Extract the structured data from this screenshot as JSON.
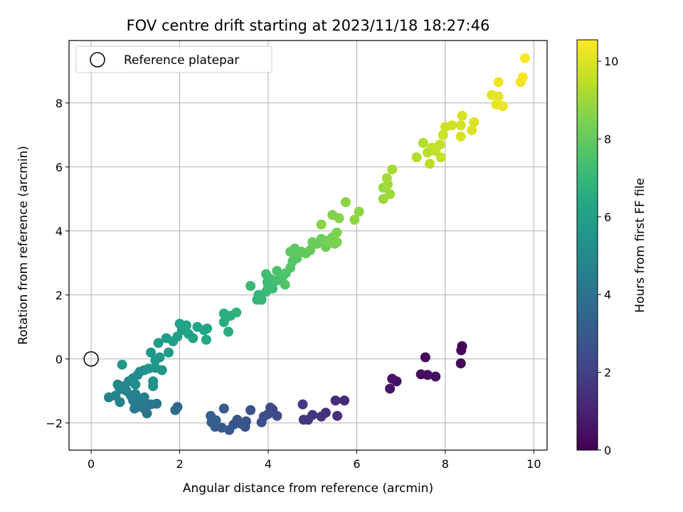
{
  "chart_data": {
    "type": "scatter",
    "title": "FOV centre drift starting at 2023/11/18 18:27:46",
    "xlabel": "Angular distance from reference (arcmin)",
    "ylabel": "Rotation from reference (arcmin)",
    "xlim": [
      -0.5,
      10.3
    ],
    "ylim": [
      -2.85,
      9.95
    ],
    "x_ticks": [
      0,
      2,
      4,
      6,
      8,
      10
    ],
    "y_ticks": [
      -2,
      0,
      2,
      4,
      6,
      8
    ],
    "grid": true,
    "legend": {
      "placement": "top-left",
      "entries": [
        "Reference platepar"
      ]
    },
    "reference_point": {
      "x": 0,
      "y": 0
    },
    "colorbar": {
      "label": "Hours from first FF file",
      "colormap": "viridis",
      "range": [
        0,
        10.55
      ],
      "ticks": [
        0,
        2,
        4,
        6,
        8,
        10
      ]
    },
    "points": [
      {
        "x": 8.38,
        "y": 0.4,
        "c": 0.1
      },
      {
        "x": 8.36,
        "y": 0.27,
        "c": 0.15
      },
      {
        "x": 8.35,
        "y": -0.14,
        "c": 0.2
      },
      {
        "x": 7.55,
        "y": 0.05,
        "c": 0.3
      },
      {
        "x": 7.45,
        "y": -0.48,
        "c": 0.35
      },
      {
        "x": 7.6,
        "y": -0.5,
        "c": 0.4
      },
      {
        "x": 7.78,
        "y": -0.55,
        "c": 0.45
      },
      {
        "x": 6.9,
        "y": -0.7,
        "c": 0.55
      },
      {
        "x": 6.8,
        "y": -0.62,
        "c": 0.6
      },
      {
        "x": 6.75,
        "y": -0.93,
        "c": 0.65
      },
      {
        "x": 5.72,
        "y": -1.3,
        "c": 1.3
      },
      {
        "x": 5.52,
        "y": -1.3,
        "c": 1.35
      },
      {
        "x": 5.56,
        "y": -1.78,
        "c": 1.45
      },
      {
        "x": 5.3,
        "y": -1.68,
        "c": 1.5
      },
      {
        "x": 5.2,
        "y": -1.8,
        "c": 1.55
      },
      {
        "x": 5.0,
        "y": -1.75,
        "c": 1.6
      },
      {
        "x": 4.9,
        "y": -1.9,
        "c": 1.65
      },
      {
        "x": 4.8,
        "y": -1.9,
        "c": 1.7
      },
      {
        "x": 4.78,
        "y": -1.42,
        "c": 1.75
      },
      {
        "x": 4.1,
        "y": -1.58,
        "c": 2.3
      },
      {
        "x": 4.05,
        "y": -1.52,
        "c": 2.35
      },
      {
        "x": 4.2,
        "y": -1.78,
        "c": 2.4
      },
      {
        "x": 4.0,
        "y": -1.72,
        "c": 2.45
      },
      {
        "x": 3.9,
        "y": -1.8,
        "c": 2.5
      },
      {
        "x": 3.85,
        "y": -1.98,
        "c": 2.55
      },
      {
        "x": 3.6,
        "y": -1.6,
        "c": 2.6
      },
      {
        "x": 3.5,
        "y": -1.95,
        "c": 2.7
      },
      {
        "x": 3.48,
        "y": -2.12,
        "c": 2.75
      },
      {
        "x": 3.38,
        "y": -2.02,
        "c": 2.8
      },
      {
        "x": 3.3,
        "y": -1.9,
        "c": 2.85
      },
      {
        "x": 3.22,
        "y": -2.05,
        "c": 2.9
      },
      {
        "x": 3.12,
        "y": -2.22,
        "c": 2.95
      },
      {
        "x": 3.0,
        "y": -1.55,
        "c": 3.0
      },
      {
        "x": 2.95,
        "y": -2.15,
        "c": 3.05
      },
      {
        "x": 2.8,
        "y": -2.12,
        "c": 3.1
      },
      {
        "x": 2.82,
        "y": -1.92,
        "c": 3.15
      },
      {
        "x": 2.72,
        "y": -1.98,
        "c": 3.2
      },
      {
        "x": 2.7,
        "y": -1.78,
        "c": 3.25
      },
      {
        "x": 1.95,
        "y": -1.5,
        "c": 3.6
      },
      {
        "x": 1.9,
        "y": -1.6,
        "c": 3.65
      },
      {
        "x": 1.26,
        "y": -1.7,
        "c": 4.0
      },
      {
        "x": 1.2,
        "y": -1.55,
        "c": 4.05
      },
      {
        "x": 1.48,
        "y": -1.4,
        "c": 4.1
      },
      {
        "x": 1.35,
        "y": -1.42,
        "c": 4.15
      },
      {
        "x": 0.98,
        "y": -1.55,
        "c": 4.2
      },
      {
        "x": 1.05,
        "y": -1.5,
        "c": 4.25
      },
      {
        "x": 1.15,
        "y": -1.4,
        "c": 4.3
      },
      {
        "x": 0.95,
        "y": -1.3,
        "c": 4.35
      },
      {
        "x": 1.1,
        "y": -1.25,
        "c": 4.4
      },
      {
        "x": 1.2,
        "y": -1.2,
        "c": 4.45
      },
      {
        "x": 0.9,
        "y": -1.15,
        "c": 4.5
      },
      {
        "x": 1.0,
        "y": -1.1,
        "c": 4.55
      },
      {
        "x": 0.4,
        "y": -1.2,
        "c": 4.6
      },
      {
        "x": 0.65,
        "y": -1.35,
        "c": 4.65
      },
      {
        "x": 0.55,
        "y": -1.15,
        "c": 4.7
      },
      {
        "x": 0.8,
        "y": -1.0,
        "c": 4.75
      },
      {
        "x": 0.65,
        "y": -0.95,
        "c": 4.8
      },
      {
        "x": 0.75,
        "y": -0.85,
        "c": 4.85
      },
      {
        "x": 0.6,
        "y": -0.8,
        "c": 4.9
      },
      {
        "x": 0.85,
        "y": -0.7,
        "c": 4.95
      },
      {
        "x": 0.95,
        "y": -0.6,
        "c": 5.0
      },
      {
        "x": 1.05,
        "y": -0.5,
        "c": 5.05
      },
      {
        "x": 1.0,
        "y": -0.8,
        "c": 5.1
      },
      {
        "x": 1.1,
        "y": -0.4,
        "c": 5.15
      },
      {
        "x": 1.2,
        "y": -0.35,
        "c": 5.2
      },
      {
        "x": 1.4,
        "y": -0.7,
        "c": 5.25
      },
      {
        "x": 1.4,
        "y": -0.85,
        "c": 5.3
      },
      {
        "x": 1.3,
        "y": -0.3,
        "c": 5.35
      },
      {
        "x": 1.45,
        "y": -0.28,
        "c": 5.4
      },
      {
        "x": 1.6,
        "y": -0.35,
        "c": 5.45
      },
      {
        "x": 0.7,
        "y": -0.18,
        "c": 5.5
      },
      {
        "x": 1.35,
        "y": 0.2,
        "c": 5.55
      },
      {
        "x": 1.55,
        "y": 0.05,
        "c": 5.6
      },
      {
        "x": 1.45,
        "y": -0.05,
        "c": 5.65
      },
      {
        "x": 1.75,
        "y": 0.2,
        "c": 5.7
      },
      {
        "x": 1.52,
        "y": 0.5,
        "c": 5.75
      },
      {
        "x": 1.7,
        "y": 0.65,
        "c": 5.8
      },
      {
        "x": 1.85,
        "y": 0.55,
        "c": 5.85
      },
      {
        "x": 1.95,
        "y": 0.7,
        "c": 5.9
      },
      {
        "x": 2.05,
        "y": 0.9,
        "c": 5.95
      },
      {
        "x": 2.0,
        "y": 1.1,
        "c": 6.0
      },
      {
        "x": 2.15,
        "y": 1.05,
        "c": 6.05
      },
      {
        "x": 2.2,
        "y": 0.78,
        "c": 6.1
      },
      {
        "x": 2.3,
        "y": 0.65,
        "c": 6.15
      },
      {
        "x": 2.4,
        "y": 1.0,
        "c": 6.2
      },
      {
        "x": 2.55,
        "y": 0.9,
        "c": 6.25
      },
      {
        "x": 2.62,
        "y": 0.95,
        "c": 6.3
      },
      {
        "x": 2.6,
        "y": 0.6,
        "c": 6.35
      },
      {
        "x": 3.1,
        "y": 0.85,
        "c": 6.5
      },
      {
        "x": 3.0,
        "y": 1.15,
        "c": 6.55
      },
      {
        "x": 3.05,
        "y": 1.3,
        "c": 6.6
      },
      {
        "x": 3.0,
        "y": 1.42,
        "c": 6.65
      },
      {
        "x": 3.15,
        "y": 1.35,
        "c": 6.7
      },
      {
        "x": 3.28,
        "y": 1.45,
        "c": 6.75
      },
      {
        "x": 3.75,
        "y": 1.85,
        "c": 6.9
      },
      {
        "x": 3.78,
        "y": 2.0,
        "c": 6.95
      },
      {
        "x": 3.85,
        "y": 1.85,
        "c": 7.0
      },
      {
        "x": 3.6,
        "y": 2.28,
        "c": 7.05
      },
      {
        "x": 3.95,
        "y": 2.1,
        "c": 7.1
      },
      {
        "x": 4.0,
        "y": 2.25,
        "c": 7.15
      },
      {
        "x": 4.1,
        "y": 2.2,
        "c": 7.2
      },
      {
        "x": 3.98,
        "y": 2.4,
        "c": 7.25
      },
      {
        "x": 4.05,
        "y": 2.5,
        "c": 7.3
      },
      {
        "x": 3.95,
        "y": 2.65,
        "c": 7.35
      },
      {
        "x": 4.2,
        "y": 2.45,
        "c": 7.4
      },
      {
        "x": 4.3,
        "y": 2.5,
        "c": 7.45
      },
      {
        "x": 4.2,
        "y": 2.75,
        "c": 7.5
      },
      {
        "x": 4.35,
        "y": 2.62,
        "c": 7.55
      },
      {
        "x": 4.4,
        "y": 2.68,
        "c": 7.6
      },
      {
        "x": 4.38,
        "y": 2.32,
        "c": 7.65
      },
      {
        "x": 4.5,
        "y": 2.85,
        "c": 7.7
      },
      {
        "x": 4.55,
        "y": 3.05,
        "c": 7.75
      },
      {
        "x": 4.65,
        "y": 3.15,
        "c": 7.8
      },
      {
        "x": 4.5,
        "y": 3.35,
        "c": 7.85
      },
      {
        "x": 4.6,
        "y": 3.45,
        "c": 7.9
      },
      {
        "x": 4.75,
        "y": 3.35,
        "c": 7.95
      },
      {
        "x": 4.85,
        "y": 3.3,
        "c": 8.0
      },
      {
        "x": 4.95,
        "y": 3.4,
        "c": 8.05
      },
      {
        "x": 5.0,
        "y": 3.65,
        "c": 8.1
      },
      {
        "x": 5.1,
        "y": 3.6,
        "c": 8.15
      },
      {
        "x": 5.2,
        "y": 3.75,
        "c": 8.2
      },
      {
        "x": 5.3,
        "y": 3.5,
        "c": 8.25
      },
      {
        "x": 5.35,
        "y": 3.7,
        "c": 8.3
      },
      {
        "x": 5.45,
        "y": 3.8,
        "c": 8.35
      },
      {
        "x": 5.5,
        "y": 3.6,
        "c": 8.4
      },
      {
        "x": 5.55,
        "y": 3.65,
        "c": 8.45
      },
      {
        "x": 5.55,
        "y": 3.95,
        "c": 8.5
      },
      {
        "x": 5.45,
        "y": 4.5,
        "c": 8.55
      },
      {
        "x": 5.6,
        "y": 4.4,
        "c": 8.6
      },
      {
        "x": 5.2,
        "y": 4.2,
        "c": 8.65
      },
      {
        "x": 5.75,
        "y": 4.9,
        "c": 8.7
      },
      {
        "x": 6.05,
        "y": 4.6,
        "c": 8.75
      },
      {
        "x": 5.95,
        "y": 4.35,
        "c": 8.8
      },
      {
        "x": 6.6,
        "y": 5.0,
        "c": 8.9
      },
      {
        "x": 6.6,
        "y": 5.35,
        "c": 8.95
      },
      {
        "x": 6.75,
        "y": 5.15,
        "c": 9.0
      },
      {
        "x": 6.7,
        "y": 5.45,
        "c": 9.05
      },
      {
        "x": 6.68,
        "y": 5.65,
        "c": 9.1
      },
      {
        "x": 6.8,
        "y": 5.92,
        "c": 9.15
      },
      {
        "x": 7.35,
        "y": 6.3,
        "c": 9.3
      },
      {
        "x": 7.5,
        "y": 6.75,
        "c": 9.35
      },
      {
        "x": 7.6,
        "y": 6.45,
        "c": 9.4
      },
      {
        "x": 7.65,
        "y": 6.1,
        "c": 9.45
      },
      {
        "x": 7.7,
        "y": 6.6,
        "c": 9.5
      },
      {
        "x": 7.78,
        "y": 6.5,
        "c": 9.55
      },
      {
        "x": 7.9,
        "y": 6.3,
        "c": 9.6
      },
      {
        "x": 7.88,
        "y": 6.7,
        "c": 9.65
      },
      {
        "x": 7.95,
        "y": 7.0,
        "c": 9.7
      },
      {
        "x": 8.0,
        "y": 7.25,
        "c": 9.75
      },
      {
        "x": 8.15,
        "y": 7.3,
        "c": 9.8
      },
      {
        "x": 8.35,
        "y": 7.3,
        "c": 9.85
      },
      {
        "x": 8.38,
        "y": 7.6,
        "c": 9.9
      },
      {
        "x": 8.35,
        "y": 6.95,
        "c": 9.95
      },
      {
        "x": 8.6,
        "y": 7.15,
        "c": 10.0
      },
      {
        "x": 8.65,
        "y": 7.4,
        "c": 10.05
      },
      {
        "x": 9.05,
        "y": 8.25,
        "c": 10.1
      },
      {
        "x": 9.2,
        "y": 8.2,
        "c": 10.15
      },
      {
        "x": 9.15,
        "y": 7.95,
        "c": 10.2
      },
      {
        "x": 9.3,
        "y": 7.9,
        "c": 10.25
      },
      {
        "x": 9.2,
        "y": 8.65,
        "c": 10.3
      },
      {
        "x": 9.7,
        "y": 8.65,
        "c": 10.35
      },
      {
        "x": 9.75,
        "y": 8.8,
        "c": 10.4
      },
      {
        "x": 9.8,
        "y": 9.4,
        "c": 10.5
      }
    ]
  }
}
